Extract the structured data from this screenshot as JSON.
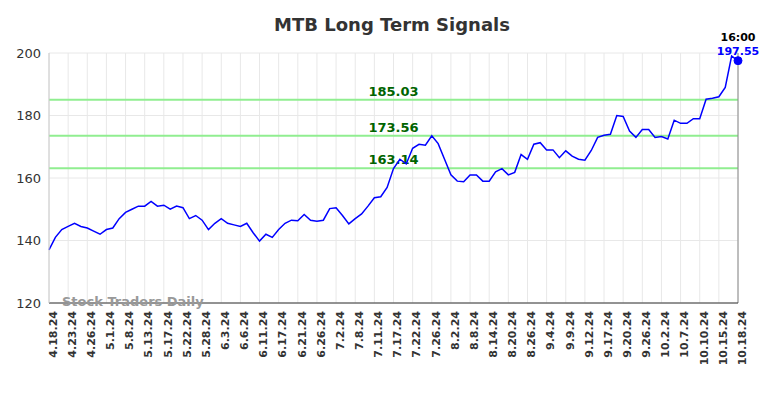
{
  "chart_data": {
    "type": "line",
    "title": "MTB Long Term Signals",
    "watermark": "Stock Traders Daily",
    "color": "#0000ff",
    "grid": true,
    "ylim": [
      120,
      200
    ],
    "yticks": [
      120,
      140,
      160,
      180,
      200
    ],
    "categories": [
      "4.18.24",
      null,
      null,
      "4.23.24",
      null,
      null,
      "4.26.24",
      null,
      null,
      "5.1.24",
      null,
      null,
      "5.8.24",
      null,
      null,
      "5.13.24",
      null,
      null,
      "5.17.24",
      null,
      null,
      "5.22.24",
      null,
      null,
      "5.28.24",
      null,
      null,
      "6.3.24",
      null,
      null,
      "6.6.24",
      null,
      null,
      "6.11.24",
      null,
      null,
      "6.17.24",
      null,
      null,
      "6.21.24",
      null,
      null,
      "6.26.24",
      null,
      null,
      "7.2.24",
      null,
      null,
      "7.8.24",
      null,
      null,
      "7.11.24",
      null,
      null,
      "7.17.24",
      null,
      null,
      "7.22.24",
      null,
      null,
      "7.26.24",
      null,
      null,
      "8.2.24",
      null,
      null,
      "8.8.24",
      null,
      null,
      "8.14.24",
      null,
      null,
      "8.20.24",
      null,
      null,
      "8.26.24",
      null,
      null,
      "9.4.24",
      null,
      null,
      "9.9.24",
      null,
      null,
      "9.12.24",
      null,
      null,
      "9.17.24",
      null,
      null,
      "9.20.24",
      null,
      null,
      "9.26.24",
      null,
      null,
      "10.2.24",
      null,
      null,
      "10.7.24",
      null,
      null,
      "10.10.24",
      null,
      null,
      "10.15.24",
      null,
      null,
      "10.18.24"
    ],
    "values": [
      137,
      141,
      143.5,
      144.5,
      145.5,
      144.5,
      144,
      143,
      142,
      143.5,
      144,
      147,
      149,
      150,
      151,
      151,
      152.5,
      151,
      151.3,
      150,
      151,
      150.5,
      147,
      148,
      146.5,
      143.5,
      145.5,
      147,
      145.5,
      145,
      144.5,
      145.5,
      142.5,
      139.8,
      142,
      141,
      143.5,
      145.5,
      146.5,
      146.3,
      148.3,
      146.5,
      146.2,
      146.5,
      150.2,
      150.5,
      148,
      145.3,
      147,
      148.5,
      151,
      153.7,
      154,
      157,
      163,
      166,
      164.5,
      169.5,
      170.8,
      170.5,
      173.5,
      171,
      166,
      161,
      159,
      158.8,
      161,
      161,
      159,
      159,
      162,
      163,
      161,
      161.8,
      167.5,
      166,
      170.8,
      171.3,
      169,
      169,
      166.5,
      168.7,
      167,
      166,
      165.7,
      168.8,
      173,
      173.7,
      174,
      180,
      179.7,
      175,
      173,
      175.5,
      175.5,
      173,
      173.3,
      172.5,
      178.5,
      177.5,
      177.5,
      179,
      179,
      185.2,
      185.5,
      186,
      189,
      199,
      197.55
    ],
    "signal_levels": [
      163.14,
      173.56,
      185.03
    ],
    "last_point": {
      "time": "16:00",
      "value": 197.55
    }
  }
}
